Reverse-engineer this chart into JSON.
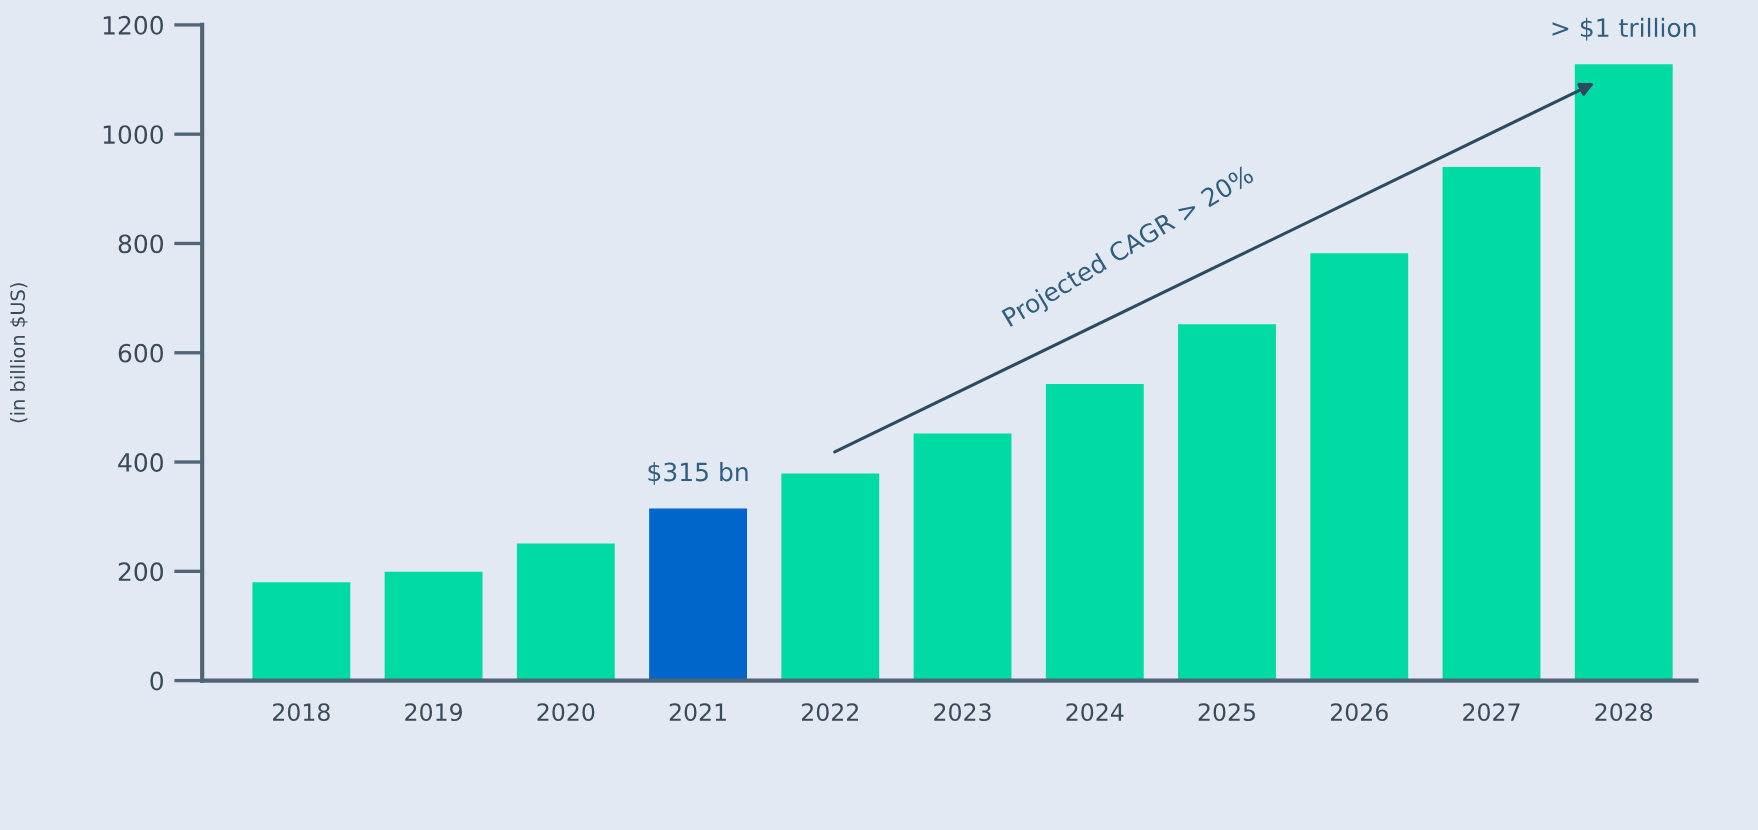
{
  "chart_data": {
    "type": "bar",
    "ylabel": "(in billion $US)",
    "categories": [
      "2018",
      "2019",
      "2020",
      "2021",
      "2022",
      "2023",
      "2024",
      "2025",
      "2026",
      "2027",
      "2028"
    ],
    "values": [
      180,
      199,
      251,
      315,
      379,
      452,
      543,
      652,
      782,
      940,
      1128
    ],
    "colors": [
      "#00dba3",
      "#00dba3",
      "#00dba3",
      "#0066cc",
      "#00dba3",
      "#00dba3",
      "#00dba3",
      "#00dba3",
      "#00dba3",
      "#00dba3",
      "#00dba3"
    ],
    "ylim": [
      0,
      1200
    ],
    "yticks": [
      0,
      200,
      400,
      600,
      800,
      1000,
      1200
    ],
    "grid": false,
    "legend": false,
    "annotations": [
      {
        "text": "$315 bn",
        "x": "2021",
        "y": 315
      },
      {
        "text": "> $1 trillion",
        "x": "2028",
        "y": 1128
      },
      "Projected CAGR > 20%"
    ]
  }
}
